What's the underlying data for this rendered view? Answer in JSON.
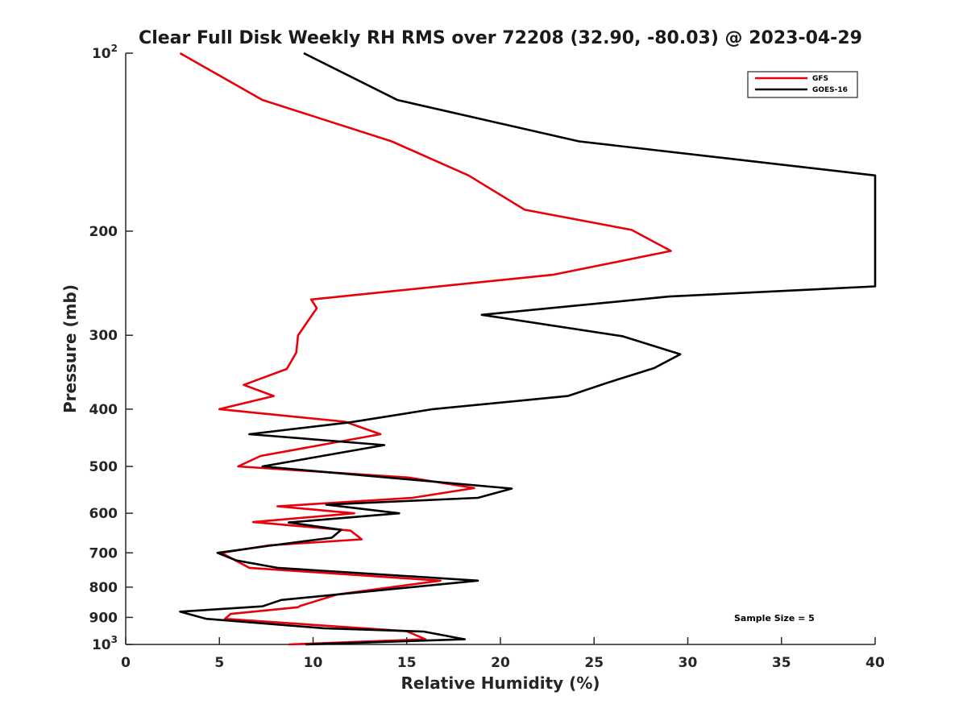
{
  "chart_data": {
    "type": "line",
    "title": "Clear Full Disk Weekly RH RMS over 72208 (32.90, -80.03) @ 2023-04-29",
    "xlabel": "Relative Humidity (%)",
    "ylabel": "Pressure (mb)",
    "xlim": [
      0,
      40
    ],
    "ylim": [
      1000,
      100
    ],
    "y_scale": "log",
    "y_reversed": true,
    "x_ticks": [
      0,
      5,
      10,
      15,
      20,
      25,
      30,
      35,
      40
    ],
    "x_tick_labels": [
      "0",
      "5",
      "10",
      "15",
      "20",
      "25",
      "30",
      "35",
      "40"
    ],
    "y_ticks": [
      100,
      200,
      300,
      400,
      500,
      600,
      700,
      800,
      900,
      1000
    ],
    "y_tick_labels": [
      {
        "base": "10",
        "exp": "2"
      },
      {
        "base": "200",
        "exp": ""
      },
      {
        "base": "300",
        "exp": ""
      },
      {
        "base": "400",
        "exp": ""
      },
      {
        "base": "500",
        "exp": ""
      },
      {
        "base": "600",
        "exp": ""
      },
      {
        "base": "700",
        "exp": ""
      },
      {
        "base": "800",
        "exp": ""
      },
      {
        "base": "900",
        "exp": ""
      },
      {
        "base": "10",
        "exp": "3"
      }
    ],
    "grid": false,
    "legend_position": "top-right",
    "annotation": "Sample Size = 5",
    "series": [
      {
        "name": "GFS",
        "color": "#e8000b",
        "points": [
          [
            2.9,
            100
          ],
          [
            7.3,
            120
          ],
          [
            14.2,
            141
          ],
          [
            18.3,
            161
          ],
          [
            21.3,
            184
          ],
          [
            27.0,
            199
          ],
          [
            29.1,
            216
          ],
          [
            22.8,
            237
          ],
          [
            9.9,
            261
          ],
          [
            10.2,
            270
          ],
          [
            9.2,
            300
          ],
          [
            9.1,
            321
          ],
          [
            8.6,
            342
          ],
          [
            6.3,
            364
          ],
          [
            7.9,
            380
          ],
          [
            5.0,
            400
          ],
          [
            11.7,
            420
          ],
          [
            13.6,
            441
          ],
          [
            10.4,
            460
          ],
          [
            7.2,
            480
          ],
          [
            6.0,
            500
          ],
          [
            15.1,
            522
          ],
          [
            18.6,
            544
          ],
          [
            15.3,
            565
          ],
          [
            8.1,
            584
          ],
          [
            12.2,
            600
          ],
          [
            6.8,
            621
          ],
          [
            12.0,
            642
          ],
          [
            12.6,
            664
          ],
          [
            7.6,
            680
          ],
          [
            5.1,
            700
          ],
          [
            6.6,
            742
          ],
          [
            16.8,
            780
          ],
          [
            11.3,
            823
          ],
          [
            9.3,
            861
          ],
          [
            9.2,
            865
          ],
          [
            5.6,
            888
          ],
          [
            5.3,
            905
          ],
          [
            15.0,
            950
          ],
          [
            16.0,
            980
          ],
          [
            8.7,
            1000
          ]
        ]
      },
      {
        "name": "GOES-16",
        "color": "#000000",
        "points": [
          [
            9.5,
            100
          ],
          [
            14.5,
            120
          ],
          [
            24.2,
            141
          ],
          [
            40.0,
            161
          ],
          [
            40.0,
            248
          ],
          [
            29.0,
            258
          ],
          [
            19.0,
            277
          ],
          [
            26.5,
            301
          ],
          [
            29.6,
            323
          ],
          [
            28.2,
            341
          ],
          [
            25.7,
            361
          ],
          [
            23.6,
            380
          ],
          [
            16.4,
            400
          ],
          [
            12.0,
            421
          ],
          [
            6.6,
            441
          ],
          [
            13.8,
            460
          ],
          [
            7.3,
            500
          ],
          [
            20.6,
            545
          ],
          [
            18.8,
            565
          ],
          [
            10.7,
            580
          ],
          [
            14.6,
            600
          ],
          [
            8.7,
            622
          ],
          [
            11.5,
            640
          ],
          [
            11.0,
            660
          ],
          [
            7.5,
            682
          ],
          [
            4.9,
            700
          ],
          [
            5.9,
            721
          ],
          [
            8.1,
            742
          ],
          [
            18.8,
            780
          ],
          [
            8.3,
            841
          ],
          [
            7.3,
            862
          ],
          [
            2.9,
            880
          ],
          [
            4.3,
            905
          ],
          [
            10.6,
            939
          ],
          [
            15.9,
            951
          ],
          [
            18.1,
            980
          ],
          [
            9.6,
            1000
          ]
        ]
      }
    ]
  }
}
